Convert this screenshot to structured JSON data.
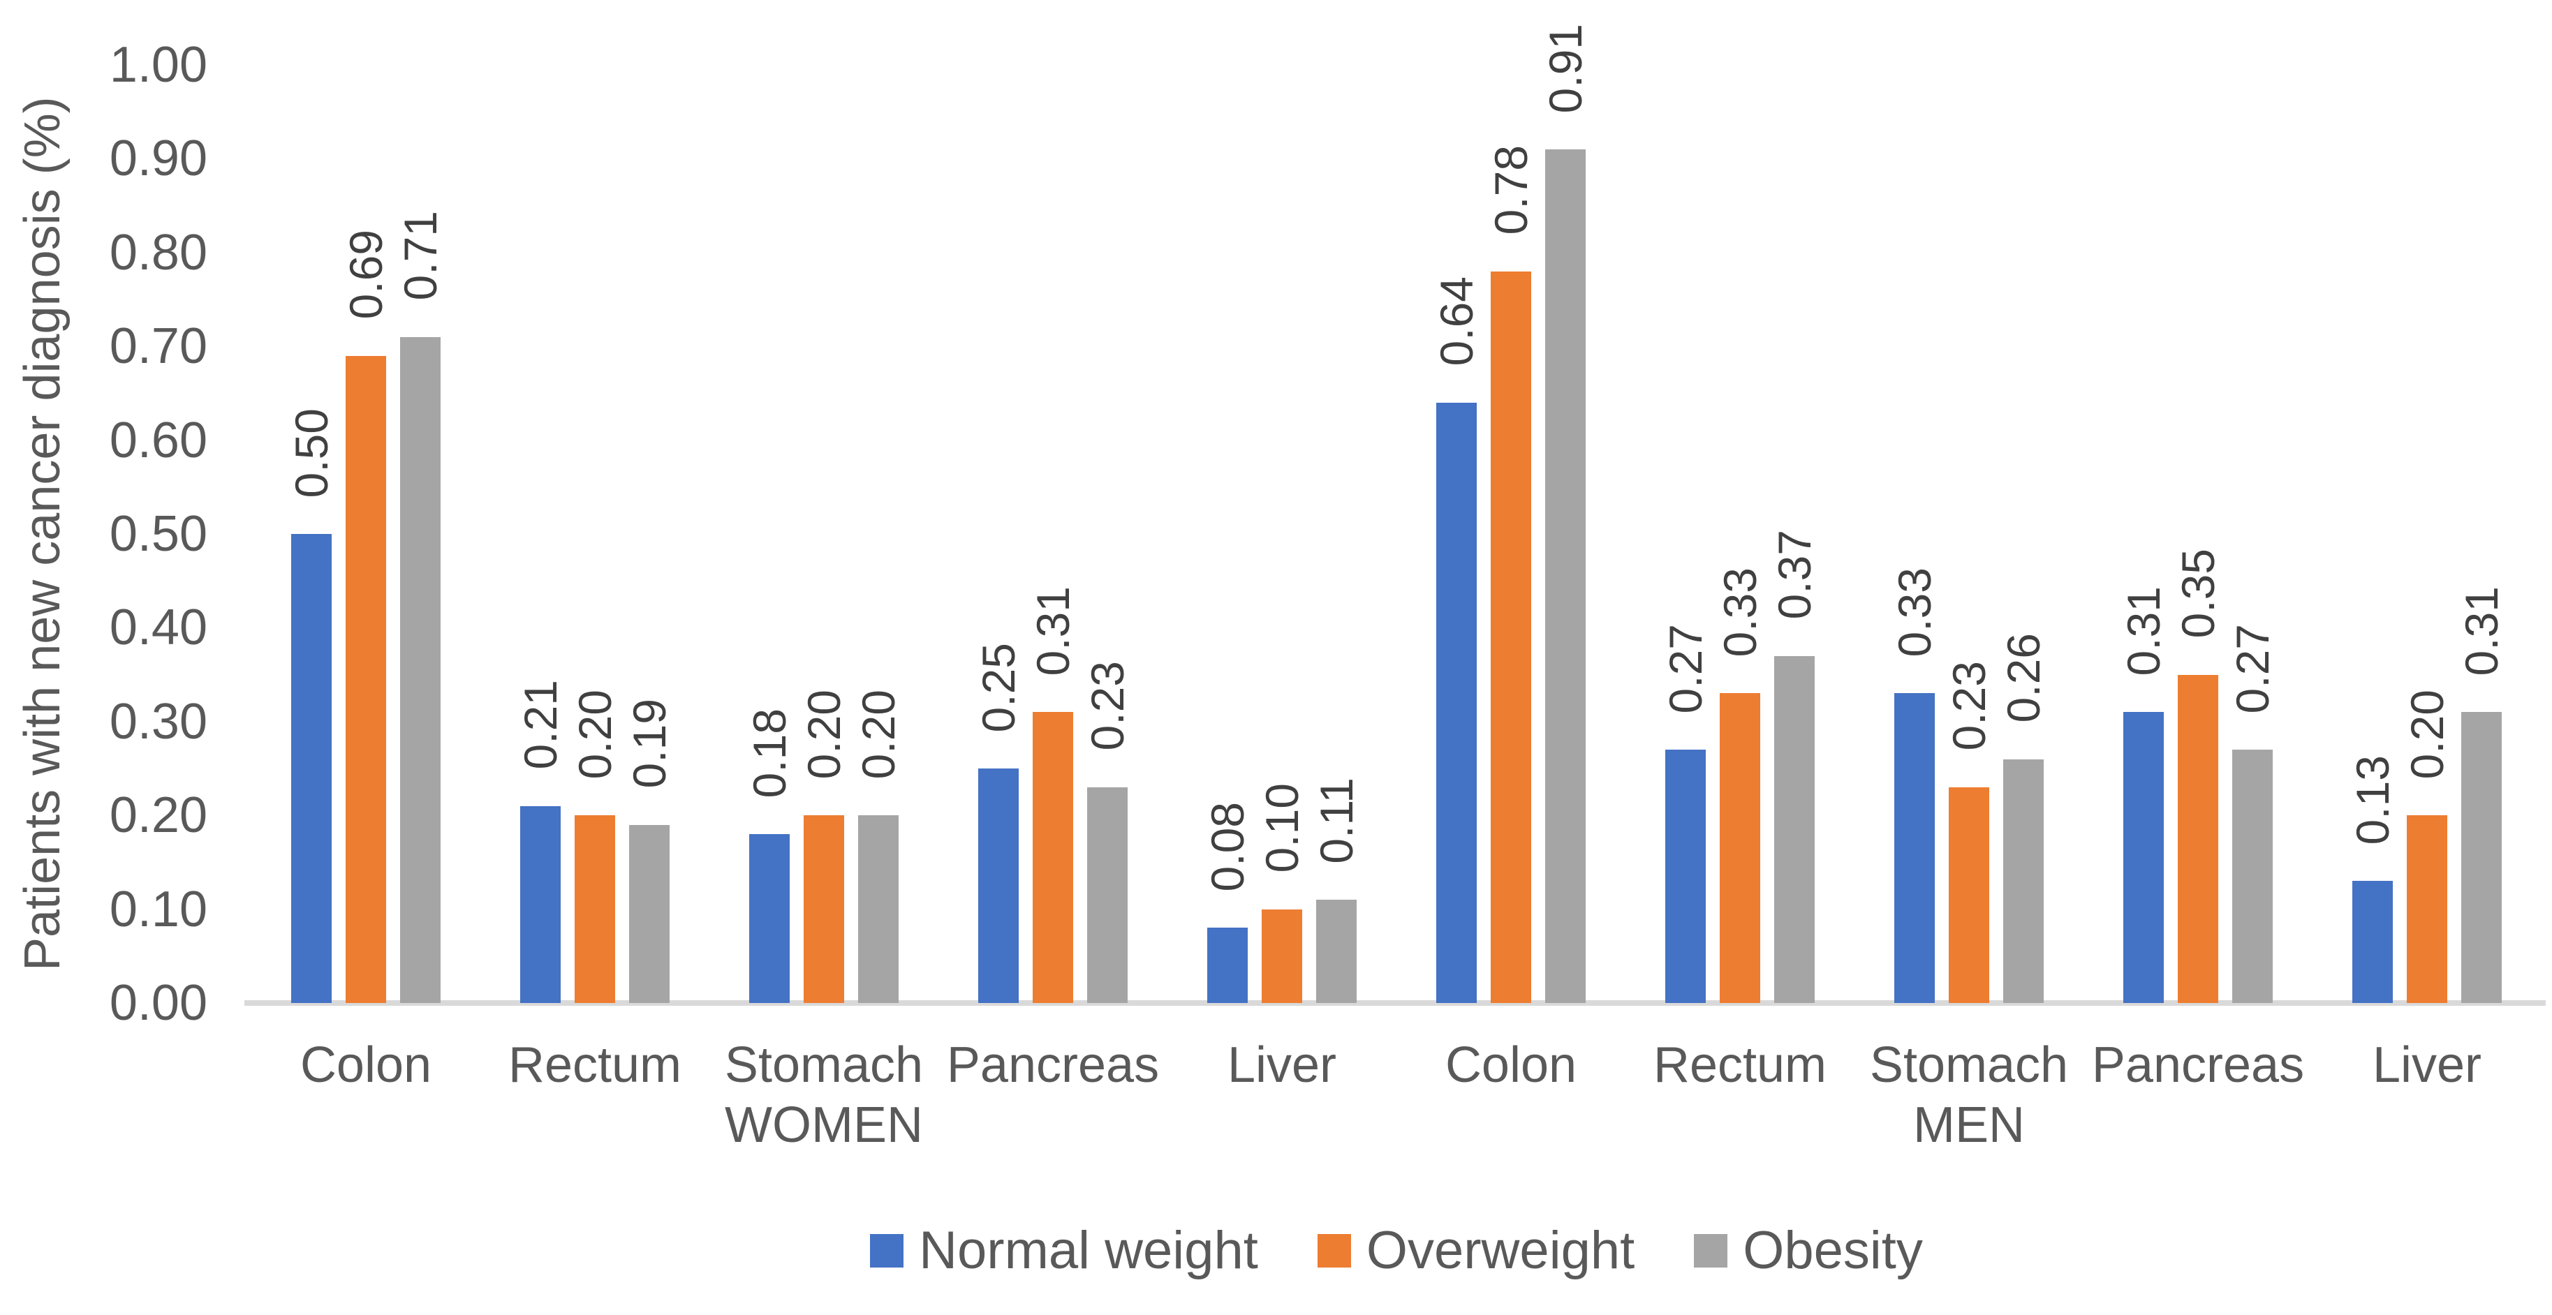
{
  "chart_data": {
    "type": "bar",
    "title": "",
    "ylabel": "Patients with new cancer diagnosis (%)",
    "xlabel": "",
    "ylim": [
      0,
      1.0
    ],
    "yticks": [
      "0.00",
      "0.10",
      "0.20",
      "0.30",
      "0.40",
      "0.50",
      "0.60",
      "0.70",
      "0.80",
      "0.90",
      "1.00"
    ],
    "grid": false,
    "legend_position": "bottom-center",
    "categories": [
      "Colon",
      "Rectum",
      "Stomach",
      "Pancreas",
      "Liver",
      "Colon",
      "Rectum",
      "Stomach",
      "Pancreas",
      "Liver"
    ],
    "category_groups": [
      {
        "label": "WOMEN",
        "span": [
          0,
          4
        ]
      },
      {
        "label": "MEN",
        "span": [
          5,
          9
        ]
      }
    ],
    "series": [
      {
        "name": "Normal weight",
        "color": "#4472C4",
        "values": [
          0.5,
          0.21,
          0.18,
          0.25,
          0.08,
          0.64,
          0.27,
          0.33,
          0.31,
          0.13
        ]
      },
      {
        "name": "Overweight",
        "color": "#ED7D31",
        "values": [
          0.69,
          0.2,
          0.2,
          0.31,
          0.1,
          0.78,
          0.33,
          0.23,
          0.35,
          0.2
        ]
      },
      {
        "name": "Obesity",
        "color": "#A5A5A5",
        "values": [
          0.71,
          0.19,
          0.2,
          0.23,
          0.11,
          0.91,
          0.37,
          0.26,
          0.27,
          0.31
        ]
      }
    ],
    "data_labels": {
      "show": true,
      "rotation_deg": 90,
      "format": "0.00"
    }
  },
  "colors": {
    "background": "#FFFFFF",
    "axis_line": "#D9D9D9",
    "axis_text": "#595959",
    "data_label_text": "#404040"
  }
}
